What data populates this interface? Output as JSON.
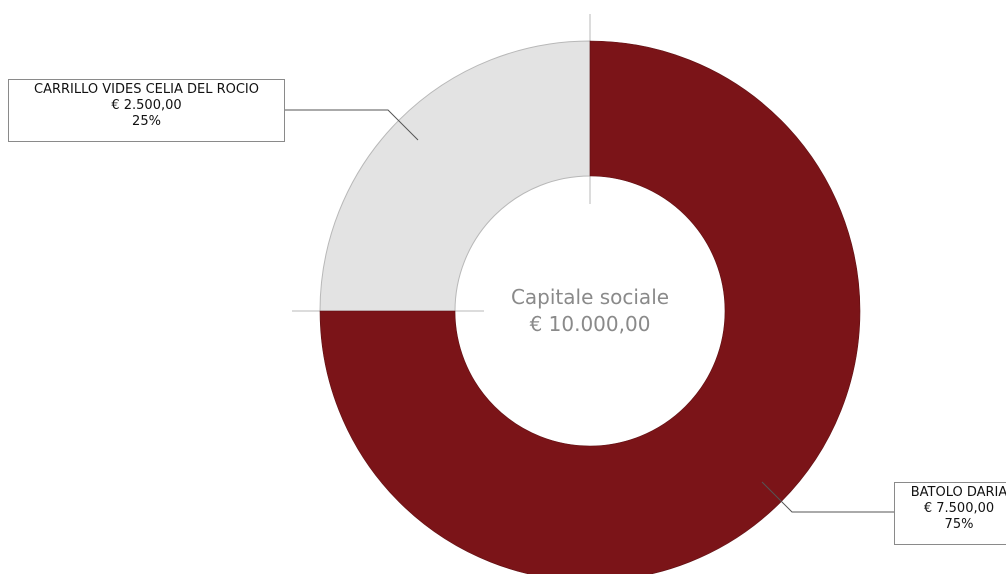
{
  "chart_data": {
    "type": "pie",
    "center": {
      "title": "Capitale sociale",
      "total": "€ 10.000,00"
    },
    "slices": [
      {
        "name": "CARRILLO VIDES CELIA DEL ROCIO",
        "amount": "€ 2.500,00",
        "percent_label": "25%",
        "value": 25,
        "color": "#e3e3e3"
      },
      {
        "name": "BATOLO DARIA",
        "amount": "€ 7.500,00",
        "percent_label": "75%",
        "value": 75,
        "color": "#7b1418"
      }
    ]
  }
}
